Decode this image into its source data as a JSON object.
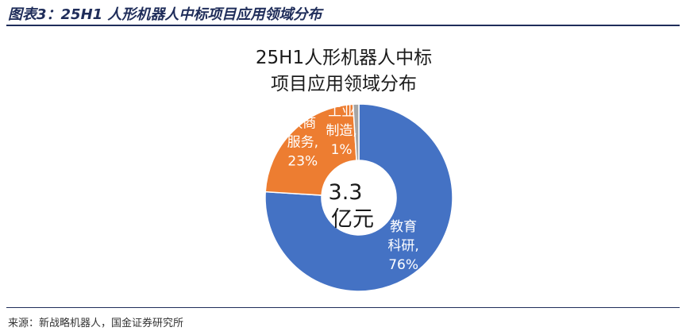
{
  "figure_caption": "图表3：25H1 人形机器人中标项目应用领域分布",
  "source_note": "来源：新战略机器人，国金证券研究所",
  "chart_data": {
    "type": "pie",
    "title_lines": [
      "25H1人形机器人中标",
      "项目应用领域分布"
    ],
    "center_label_lines": [
      "3.3",
      "亿元"
    ],
    "categories": [
      "教育科研",
      "政商服务",
      "工业制造"
    ],
    "values": [
      76,
      23,
      1
    ],
    "unit": "%",
    "colors": [
      "#4472C4",
      "#ED7D31",
      "#A5A5A5"
    ],
    "data_labels": [
      [
        "教育",
        "科研,",
        "76%"
      ],
      [
        "政商",
        "服务,",
        "23%"
      ],
      [
        "工业",
        "制造,",
        "1%"
      ]
    ]
  }
}
